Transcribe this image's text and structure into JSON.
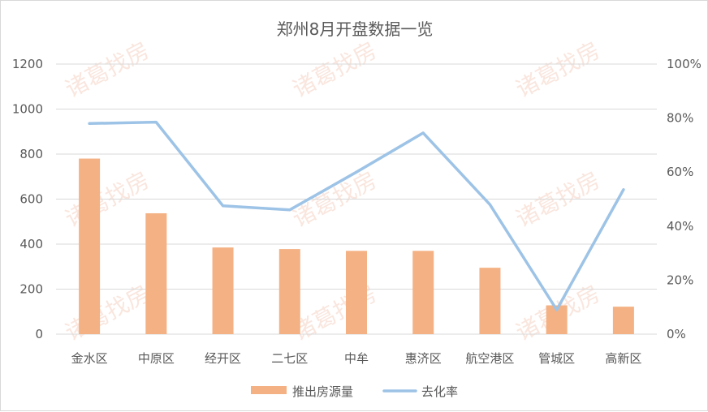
{
  "colors": {
    "bar": "#f4b183",
    "line": "#9dc3e6",
    "grid": "#d9d9d9",
    "text": "#595959",
    "watermark": "#f3c8b8"
  },
  "watermark_text": "诸葛找房",
  "chart_data": {
    "type": "bar",
    "title": "郑州8月开盘数据一览",
    "categories": [
      "金水区",
      "中原区",
      "经开区",
      "二七区",
      "中牟",
      "惠济区",
      "航空港区",
      "管城区",
      "高新区"
    ],
    "series": [
      {
        "name": "推出房源量",
        "type": "bar",
        "axis": "left",
        "values": [
          780,
          537,
          385,
          378,
          370,
          370,
          295,
          128,
          122
        ]
      },
      {
        "name": "去化率",
        "type": "line",
        "axis": "right",
        "values": [
          0.78,
          0.785,
          0.475,
          0.46,
          0.6,
          0.745,
          0.48,
          0.09,
          0.535
        ]
      }
    ],
    "ylim_left": [
      0,
      1200
    ],
    "ylim_right": [
      0,
      1
    ],
    "left_ticks": [
      "0",
      "200",
      "400",
      "600",
      "800",
      "1000",
      "1200"
    ],
    "right_ticks": [
      "0%",
      "20%",
      "40%",
      "60%",
      "80%",
      "100%"
    ],
    "grid": true,
    "legend_position": "bottom"
  }
}
